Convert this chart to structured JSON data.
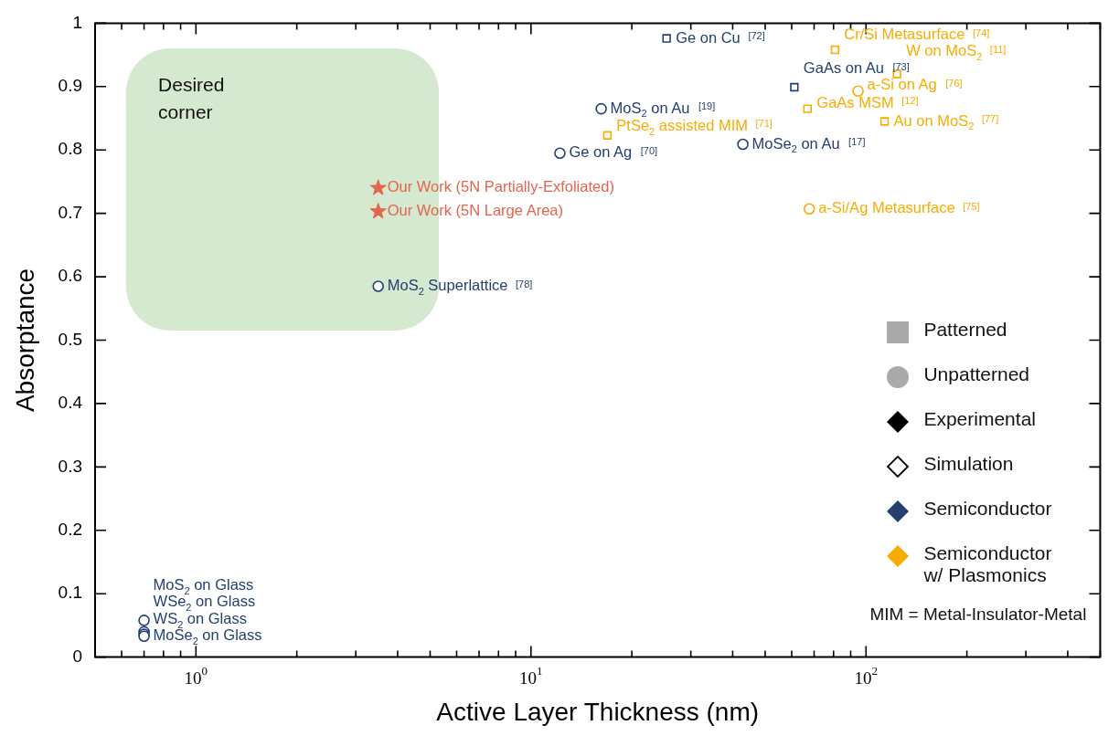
{
  "chart_data": {
    "type": "scatter",
    "xlabel": "Active Layer Thickness (nm)",
    "ylabel": "Absorptance",
    "log": "x",
    "grid": false,
    "legend": false,
    "xlim": [
      0.5,
      500
    ],
    "ylim": [
      0,
      1
    ],
    "xticks": [
      {
        "value": 0.6,
        "label": null
      },
      {
        "value": 0.7,
        "label": null
      },
      {
        "value": 0.8,
        "label": null
      },
      {
        "value": 0.9,
        "label": null
      },
      {
        "value": 1,
        "label": "10$^{0}$"
      },
      {
        "value": 2,
        "label": null
      },
      {
        "value": 3,
        "label": null
      },
      {
        "value": 4,
        "label": null
      },
      {
        "value": 5,
        "label": null
      },
      {
        "value": 6,
        "label": null
      },
      {
        "value": 7,
        "label": null
      },
      {
        "value": 8,
        "label": null
      },
      {
        "value": 9,
        "label": null
      },
      {
        "value": 10,
        "label": "10$^{1}$"
      },
      {
        "value": 20,
        "label": null
      },
      {
        "value": 30,
        "label": null
      },
      {
        "value": 40,
        "label": null
      },
      {
        "value": 50,
        "label": null
      },
      {
        "value": 60,
        "label": null
      },
      {
        "value": 70,
        "label": null
      },
      {
        "value": 80,
        "label": null
      },
      {
        "value": 90,
        "label": null
      },
      {
        "value": 100,
        "label": "10$^{2}$"
      },
      {
        "value": 200,
        "label": null
      },
      {
        "value": 300,
        "label": null
      },
      {
        "value": 400,
        "label": null
      },
      {
        "value": 500,
        "label": null
      }
    ],
    "yticks": [
      0,
      0.1,
      0.2,
      0.3,
      0.4,
      0.5,
      0.6,
      0.7,
      0.8,
      0.9,
      1
    ],
    "series": [
      {
        "color": "#23406f",
        "marker": "square",
        "x": [
          25.4,
          61.1
        ],
        "values": [
          0.976,
          0.899
        ]
      },
      {
        "color": "#23406f",
        "marker": "circle",
        "x": [
          16.2,
          42.9
        ],
        "values": [
          0.865,
          0.809
        ]
      },
      {
        "color": "#23406f",
        "marker": "circle",
        "x": [
          12.2,
          3.5,
          0.7,
          0.7,
          0.7,
          0.7
        ],
        "values": [
          0.795,
          0.585,
          0.058,
          0.04,
          0.036,
          0.033
        ]
      },
      {
        "color": "#f7ac00",
        "marker": "square",
        "x": [
          80.8,
          123.7,
          16.9,
          113.6
        ],
        "values": [
          0.958,
          0.92,
          0.823,
          0.845
        ]
      },
      {
        "color": "#f7ac00",
        "marker": "square",
        "x": [
          66.9
        ],
        "values": [
          0.865
        ]
      },
      {
        "color": "#f7ac00",
        "marker": "circle",
        "x": [
          94.7,
          67.7
        ],
        "values": [
          0.893,
          0.707
        ]
      },
      {
        "color": "#e5644d",
        "marker": "star",
        "x": [
          3.5,
          3.5
        ],
        "values": [
          0.74,
          0.703
        ]
      }
    ],
    "annotations": [
      "Desired corner",
      "Patterned",
      "Unpatterned",
      "Experimental",
      "Simulation",
      "Semiconductor",
      "Semiconductor w/ Plasmonics",
      "MIM = Metal-Insulator-Metal",
      {
        "text": "Ge on Cu [72]",
        "x": 25.4,
        "y": 0.976
      },
      {
        "text": "GaAs on Au [73]",
        "x": 61.1,
        "y": 0.899
      },
      {
        "text": "MoS$_{2}$ on Au [19]",
        "x": 16.2,
        "y": 0.865
      },
      {
        "text": "MoSe$_{2}$ on Au [17]",
        "x": 42.9,
        "y": 0.809
      },
      {
        "text": "Ge on Ag [70]",
        "x": 12.2,
        "y": 0.795
      },
      {
        "text": "MoS$_{2}$ Superlattice [78]",
        "x": 3.5,
        "y": 0.585
      },
      {
        "text": "MoS$_{2}$ on Glass",
        "x": 0.7,
        "y": 0.058
      },
      {
        "text": "WSe$_{2}$ on Glass",
        "x": 0.7,
        "y": 0.04
      },
      {
        "text": "WS$_{2}$ on Glass",
        "x": 0.7,
        "y": 0.036
      },
      {
        "text": "MoSe$_{2}$ on Glass",
        "x": 0.7,
        "y": 0.033
      },
      {
        "text": "Cr/Si Metasurface [74]",
        "x": 80.8,
        "y": 0.958
      },
      {
        "text": "W on MoS$_{2}$ [11]",
        "x": 123.7,
        "y": 0.92
      },
      {
        "text": "PtSe$_{2}$ assisted MIM [71]",
        "x": 16.9,
        "y": 0.823
      },
      {
        "text": "Au on MoS$_{2}$ [77]",
        "x": 113.6,
        "y": 0.845
      },
      {
        "text": "GaAs MSM [12]",
        "x": 66.9,
        "y": 0.865
      },
      {
        "text": "a-Si on Ag [76]",
        "x": 94.7,
        "y": 0.893
      },
      {
        "text": "a-Si/Ag Metasurface [75]",
        "x": 67.7,
        "y": 0.707
      },
      {
        "text": "Our Work (5N Partially-Exfoliated)",
        "x": 3.5,
        "y": 0.74
      },
      {
        "text": "Our Work (5N Large Area)",
        "x": 3.5,
        "y": 0.703
      }
    ]
  }
}
